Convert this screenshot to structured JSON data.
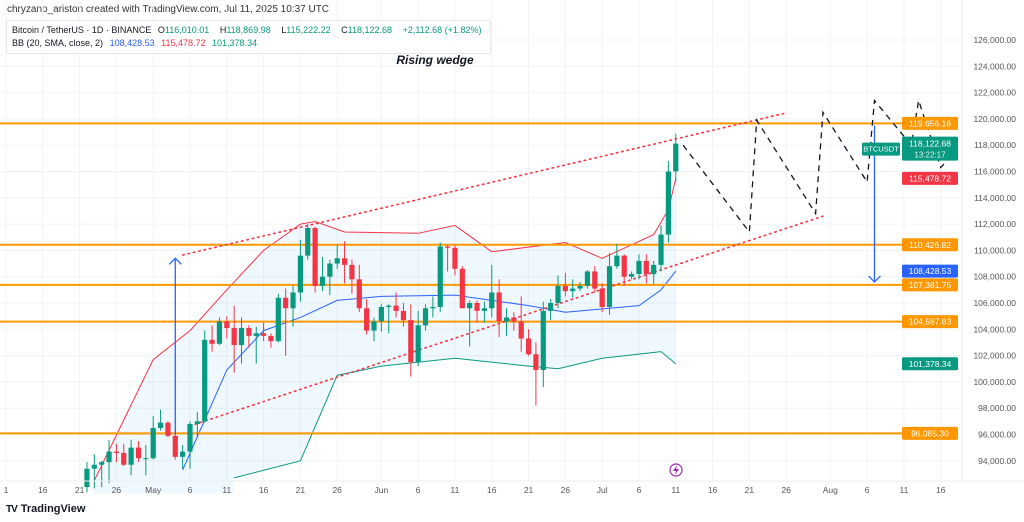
{
  "credit": "chryzano_ariston created with TradingView.com, Jul 11, 2025 10:37 UTC",
  "legend": {
    "symbol": "Bitcoin / TetherUS · 1D · BINANCE",
    "o_label": "O",
    "o": "116,010.01",
    "h_label": "H",
    "h": "118,869.98",
    "l_label": "L",
    "l": "115,222.22",
    "c_label": "C",
    "c": "118,122.68",
    "change": "+2,112.68 (+1.82%)",
    "bb_label": "BB (20, SMA, close, 2)",
    "bb_basis": "108,428.53",
    "bb_upper": "115,478.72",
    "bb_lower": "101,378.34"
  },
  "logo": {
    "text": "TradingView",
    "mark": "TV"
  },
  "colors": {
    "up": "#089981",
    "down": "#f23645",
    "orange": "#ff9800",
    "blue": "#2962ff",
    "upper_band": "#f23645",
    "lower_band": "#089981"
  },
  "chart_data": {
    "type": "candlestick",
    "title": "Rising wedge",
    "annotation": "Rising wedge",
    "ylim": [
      92000,
      127500
    ],
    "y_ticks": [
      "126,000.00",
      "124,000.00",
      "122,000.00",
      "120,000.00",
      "118,000.00",
      "116,000.00",
      "114,000.00",
      "112,000.00",
      "110,000.00",
      "108,000.00",
      "106,000.00",
      "104,000.00",
      "102,000.00",
      "100,000.00",
      "98,000.00",
      "96,000.00",
      "94,000.00"
    ],
    "y_tick_values": [
      126000,
      124000,
      122000,
      120000,
      118000,
      116000,
      114000,
      112000,
      110000,
      108000,
      106000,
      104000,
      102000,
      100000,
      98000,
      96000,
      94000
    ],
    "x_ticks": [
      {
        "label": "1",
        "date": "2025-04-11"
      },
      {
        "label": "16",
        "date": "2025-04-16"
      },
      {
        "label": "21",
        "date": "2025-04-21"
      },
      {
        "label": "26",
        "date": "2025-04-26"
      },
      {
        "label": "May",
        "date": "2025-05-01"
      },
      {
        "label": "6",
        "date": "2025-05-06"
      },
      {
        "label": "11",
        "date": "2025-05-11"
      },
      {
        "label": "16",
        "date": "2025-05-16"
      },
      {
        "label": "21",
        "date": "2025-05-21"
      },
      {
        "label": "26",
        "date": "2025-05-26"
      },
      {
        "label": "Jun",
        "date": "2025-06-01"
      },
      {
        "label": "6",
        "date": "2025-06-06"
      },
      {
        "label": "11",
        "date": "2025-06-11"
      },
      {
        "label": "16",
        "date": "2025-06-16"
      },
      {
        "label": "21",
        "date": "2025-06-21"
      },
      {
        "label": "26",
        "date": "2025-06-26"
      },
      {
        "label": "Jul",
        "date": "2025-07-01"
      },
      {
        "label": "6",
        "date": "2025-07-06"
      },
      {
        "label": "11",
        "date": "2025-07-11"
      },
      {
        "label": "16",
        "date": "2025-07-16"
      },
      {
        "label": "21",
        "date": "2025-07-21"
      },
      {
        "label": "26",
        "date": "2025-07-26"
      },
      {
        "label": "Aug",
        "date": "2025-08-01"
      },
      {
        "label": "6",
        "date": "2025-08-06"
      },
      {
        "label": "11",
        "date": "2025-08-11"
      },
      {
        "label": "16",
        "date": "2025-08-16"
      }
    ],
    "candles_start": "2025-04-22",
    "candle_unit": "thousand USDT",
    "candles": [
      [
        92.0,
        93.9,
        91.6,
        93.4
      ],
      [
        93.4,
        94.5,
        91.9,
        93.7
      ],
      [
        93.7,
        94.0,
        92.0,
        93.9
      ],
      [
        93.9,
        95.6,
        92.3,
        94.7
      ],
      [
        94.7,
        95.3,
        93.9,
        94.6
      ],
      [
        94.6,
        95.3,
        93.6,
        93.7
      ],
      [
        93.7,
        95.6,
        92.9,
        95.0
      ],
      [
        95.0,
        95.5,
        93.9,
        94.2
      ],
      [
        94.2,
        95.2,
        92.9,
        94.2
      ],
      [
        94.2,
        97.4,
        94.1,
        96.5
      ],
      [
        96.5,
        97.9,
        96.3,
        96.9
      ],
      [
        96.9,
        97.0,
        95.8,
        95.9
      ],
      [
        95.9,
        96.3,
        94.1,
        94.3
      ],
      [
        94.3,
        95.2,
        93.4,
        94.7
      ],
      [
        94.7,
        97.0,
        93.4,
        96.8
      ],
      [
        96.8,
        97.7,
        95.8,
        97.0
      ],
      [
        97.0,
        103.9,
        96.9,
        103.2
      ],
      [
        103.2,
        104.3,
        102.3,
        102.9
      ],
      [
        102.9,
        104.9,
        102.8,
        104.6
      ],
      [
        104.6,
        105.0,
        103.3,
        104.1
      ],
      [
        104.1,
        105.8,
        100.7,
        102.8
      ],
      [
        102.8,
        104.9,
        101.4,
        104.1
      ],
      [
        104.1,
        104.3,
        102.6,
        103.5
      ],
      [
        103.5,
        104.2,
        101.4,
        103.7
      ],
      [
        103.7,
        104.5,
        103.1,
        103.5
      ],
      [
        103.5,
        103.7,
        102.6,
        103.1
      ],
      [
        103.1,
        106.7,
        103.0,
        106.4
      ],
      [
        106.4,
        107.1,
        102.0,
        105.6
      ],
      [
        105.6,
        107.3,
        104.2,
        106.8
      ],
      [
        106.8,
        110.8,
        106.1,
        109.6
      ],
      [
        109.6,
        112.0,
        109.3,
        111.7
      ],
      [
        111.7,
        111.8,
        106.8,
        107.3
      ],
      [
        107.3,
        109.5,
        106.9,
        108.0
      ],
      [
        108.0,
        109.3,
        106.6,
        109.0
      ],
      [
        109.0,
        110.4,
        108.6,
        109.4
      ],
      [
        109.4,
        110.7,
        107.5,
        108.9
      ],
      [
        108.9,
        109.3,
        106.7,
        107.8
      ],
      [
        107.8,
        108.9,
        105.3,
        105.6
      ],
      [
        105.6,
        106.3,
        103.6,
        103.9
      ],
      [
        103.9,
        104.9,
        103.1,
        104.6
      ],
      [
        104.6,
        105.9,
        103.8,
        105.7
      ],
      [
        105.7,
        105.9,
        103.7,
        105.8
      ],
      [
        105.8,
        106.8,
        104.9,
        105.4
      ],
      [
        105.4,
        106.0,
        104.2,
        104.7
      ],
      [
        104.7,
        105.9,
        100.4,
        101.5
      ],
      [
        101.5,
        105.4,
        101.2,
        104.3
      ],
      [
        104.3,
        105.9,
        103.9,
        105.6
      ],
      [
        105.6,
        106.5,
        104.9,
        105.7
      ],
      [
        105.7,
        110.6,
        105.3,
        110.3
      ],
      [
        110.3,
        110.4,
        108.4,
        110.2
      ],
      [
        110.2,
        110.4,
        108.1,
        108.6
      ],
      [
        108.6,
        108.8,
        105.7,
        105.6
      ],
      [
        105.6,
        106.2,
        102.7,
        106.0
      ],
      [
        106.0,
        106.2,
        104.5,
        105.4
      ],
      [
        105.4,
        106.1,
        104.5,
        105.6
      ],
      [
        105.6,
        108.9,
        104.9,
        106.8
      ],
      [
        106.8,
        107.8,
        103.4,
        104.6
      ],
      [
        104.6,
        105.6,
        103.5,
        104.9
      ],
      [
        104.9,
        105.3,
        103.9,
        104.6
      ],
      [
        104.6,
        106.5,
        102.3,
        103.3
      ],
      [
        103.3,
        104.0,
        102.0,
        102.1
      ],
      [
        102.1,
        103.0,
        98.2,
        100.9
      ],
      [
        100.9,
        106.1,
        99.6,
        105.4
      ],
      [
        105.4,
        106.3,
        104.7,
        106.0
      ],
      [
        106.0,
        108.1,
        105.6,
        107.3
      ],
      [
        107.3,
        108.3,
        106.5,
        106.9
      ],
      [
        106.9,
        107.8,
        106.4,
        107.1
      ],
      [
        107.1,
        107.6,
        106.9,
        107.3
      ],
      [
        107.3,
        108.5,
        107.1,
        108.4
      ],
      [
        108.4,
        108.8,
        106.8,
        107.1
      ],
      [
        107.1,
        107.5,
        105.3,
        105.7
      ],
      [
        105.7,
        109.8,
        105.1,
        108.8
      ],
      [
        108.8,
        110.5,
        108.6,
        109.6
      ],
      [
        109.6,
        109.7,
        107.3,
        108.0
      ],
      [
        108.0,
        108.4,
        107.8,
        108.2
      ],
      [
        108.2,
        109.7,
        107.8,
        109.2
      ],
      [
        109.2,
        109.7,
        107.5,
        108.2
      ],
      [
        108.2,
        109.2,
        107.4,
        108.9
      ],
      [
        108.9,
        111.9,
        108.4,
        111.2
      ],
      [
        111.2,
        116.8,
        110.6,
        116.0
      ],
      [
        116.01,
        118.87,
        115.22,
        118.12
      ]
    ],
    "bb_upper": [
      [
        "2025-04-23",
        92.5
      ],
      [
        "2025-05-01",
        101.7
      ],
      [
        "2025-05-06",
        103.9
      ],
      [
        "2025-05-11",
        107.0
      ],
      [
        "2025-05-16",
        110.0
      ],
      [
        "2025-05-21",
        112.0
      ],
      [
        "2025-05-23",
        112.2
      ],
      [
        "2025-05-27",
        111.4
      ],
      [
        "2025-06-06",
        111.3
      ],
      [
        "2025-06-11",
        111.9
      ],
      [
        "2025-06-16",
        109.9
      ],
      [
        "2025-06-26",
        110.6
      ],
      [
        "2025-07-01",
        109.4
      ],
      [
        "2025-07-08",
        111.2
      ],
      [
        "2025-07-10",
        113.1
      ],
      [
        "2025-07-11",
        115.48
      ]
    ],
    "bb_basis": [
      [
        "2025-05-05",
        93.3
      ],
      [
        "2025-05-11",
        100.9
      ],
      [
        "2025-05-16",
        103.9
      ],
      [
        "2025-05-21",
        104.9
      ],
      [
        "2025-05-26",
        106.2
      ],
      [
        "2025-06-01",
        106.5
      ],
      [
        "2025-06-11",
        106.6
      ],
      [
        "2025-06-21",
        105.8
      ],
      [
        "2025-06-26",
        105.3
      ],
      [
        "2025-07-06",
        105.8
      ],
      [
        "2025-07-09",
        107.0
      ],
      [
        "2025-07-11",
        108.43
      ]
    ],
    "bb_lower": [
      [
        "2025-05-12",
        92.7
      ],
      [
        "2025-05-21",
        94.0
      ],
      [
        "2025-05-26",
        100.5
      ],
      [
        "2025-06-01",
        101.2
      ],
      [
        "2025-06-11",
        101.8
      ],
      [
        "2025-06-21",
        101.2
      ],
      [
        "2025-06-25",
        101.0
      ],
      [
        "2025-07-01",
        101.8
      ],
      [
        "2025-07-09",
        102.3
      ],
      [
        "2025-07-11",
        101.38
      ]
    ],
    "horizontal_levels": [
      {
        "value": 119656.18,
        "label": "119,656.18"
      },
      {
        "value": 110426.82,
        "label": "110,426.82"
      },
      {
        "value": 107381.75,
        "label": "107,381.75"
      },
      {
        "value": 104587.83,
        "label": "104,587.83"
      },
      {
        "value": 96085.3,
        "label": "96,085.30"
      }
    ],
    "wedge_upper": [
      [
        "2025-05-05",
        109.65
      ],
      [
        "2025-07-26",
        120.45
      ]
    ],
    "wedge_lower": [
      [
        "2025-05-06",
        96.65
      ],
      [
        "2025-07-31",
        112.6
      ]
    ],
    "projection": [
      [
        "2025-07-12",
        118.0
      ],
      [
        "2025-07-21",
        111.4
      ],
      [
        "2025-07-22",
        119.9
      ],
      [
        "2025-07-30",
        112.8
      ],
      [
        "2025-07-31",
        120.5
      ],
      [
        "2025-08-06",
        115.2
      ],
      [
        "2025-08-07",
        121.4
      ],
      [
        "2025-08-12",
        118.0
      ],
      [
        "2025-08-13",
        121.4
      ],
      [
        "2025-08-16",
        116.3
      ],
      [
        "2025-08-17",
        116.9
      ]
    ],
    "arrows": [
      {
        "name": "target-up-arrow",
        "date": "2025-05-04",
        "from": 96.0,
        "to": 109.4
      },
      {
        "name": "target-down-arrow",
        "date": "2025-08-07",
        "from": 119.5,
        "to": 107.6
      }
    ],
    "price_tags": [
      {
        "name": "last-price-tag",
        "value": 118122.68,
        "label": "118,122.68",
        "sub": "13:22:17",
        "symbol": "BTCUSDT",
        "color": "#089981"
      },
      {
        "name": "bb-upper-tag",
        "value": 115478.72,
        "label": "115,478.72",
        "color": "#f23645"
      },
      {
        "name": "bb-basis-tag",
        "value": 108428.53,
        "label": "108,428.53",
        "color": "#2962ff"
      },
      {
        "name": "bb-lower-tag",
        "value": 101378.34,
        "label": "101,378.34",
        "color": "#089981"
      }
    ]
  }
}
